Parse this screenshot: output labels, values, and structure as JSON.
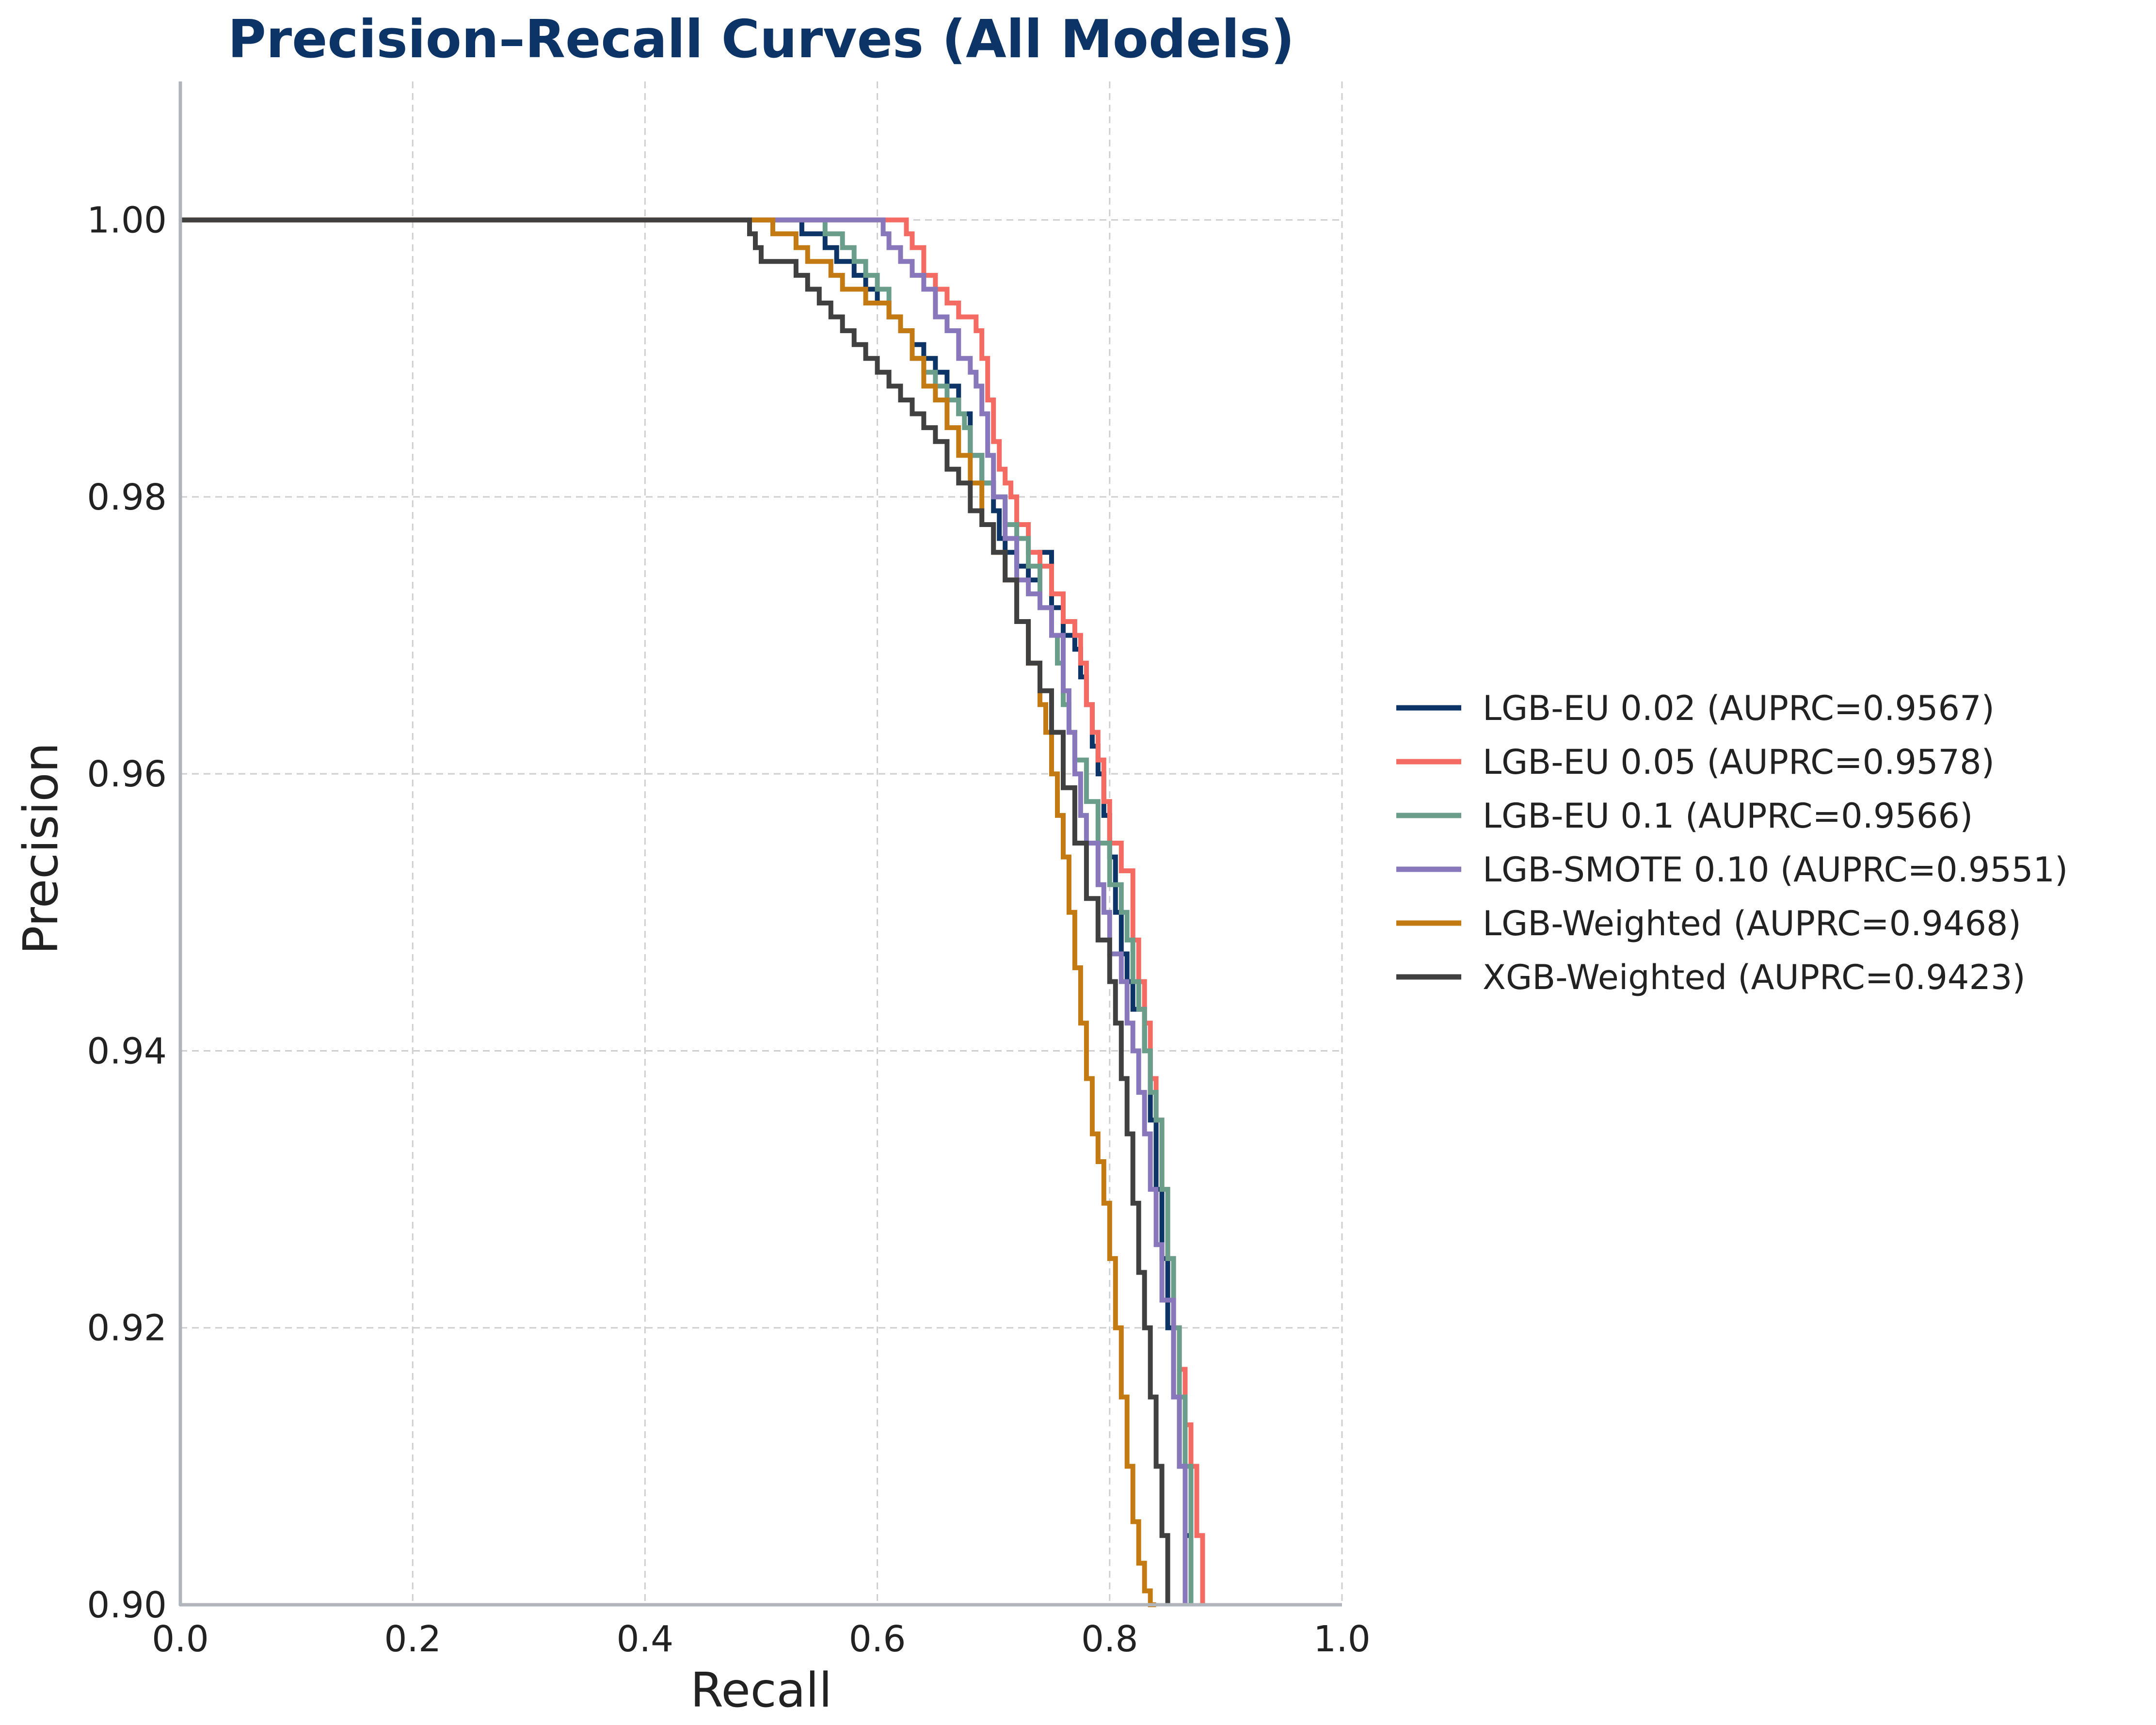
{
  "chart_data": {
    "type": "line",
    "title": "Precision–Recall Curves (All Models)",
    "xlabel": "Recall",
    "ylabel": "Precision",
    "xlim": [
      0.0,
      1.0
    ],
    "ylim": [
      0.9,
      1.01
    ],
    "xticks": [
      "0.0",
      "0.2",
      "0.4",
      "0.6",
      "0.8",
      "1.0"
    ],
    "xtick_values": [
      0.0,
      0.2,
      0.4,
      0.6,
      0.8,
      1.0
    ],
    "yticks": [
      "0.90",
      "0.92",
      "0.94",
      "0.96",
      "0.98",
      "1.00"
    ],
    "ytick_values": [
      0.9,
      0.92,
      0.94,
      0.96,
      0.98,
      1.0
    ],
    "grid": true,
    "legend_position": "right",
    "colors": {
      "title": "#0d3466",
      "axis": "#b0b4bb",
      "grid": "#cfcfcf",
      "text": "#222222"
    },
    "series": [
      {
        "name": "LGB-EU 0.02 (AUPRC=0.9567)",
        "color": "#0d3466",
        "x": [
          0.0,
          0.53,
          0.535,
          0.555,
          0.565,
          0.58,
          0.59,
          0.6,
          0.61,
          0.62,
          0.63,
          0.64,
          0.65,
          0.66,
          0.67,
          0.68,
          0.69,
          0.7,
          0.705,
          0.71,
          0.72,
          0.73,
          0.74,
          0.75,
          0.76,
          0.77,
          0.775,
          0.78,
          0.785,
          0.79,
          0.795,
          0.8,
          0.805,
          0.81,
          0.815,
          0.82,
          0.83,
          0.835,
          0.84,
          0.845,
          0.85,
          0.855,
          0.86,
          0.865,
          0.87
        ],
        "y": [
          1.0,
          1.0,
          0.999,
          0.998,
          0.997,
          0.996,
          0.995,
          0.994,
          0.993,
          0.992,
          0.991,
          0.99,
          0.989,
          0.988,
          0.986,
          0.983,
          0.981,
          0.979,
          0.977,
          0.976,
          0.975,
          0.974,
          0.976,
          0.972,
          0.97,
          0.969,
          0.967,
          0.965,
          0.962,
          0.96,
          0.957,
          0.954,
          0.95,
          0.947,
          0.945,
          0.943,
          0.94,
          0.935,
          0.93,
          0.925,
          0.92,
          0.915,
          0.91,
          0.905,
          0.9
        ]
      },
      {
        "name": "LGB-EU 0.05 (AUPRC=0.9578)",
        "color": "#f36b62",
        "x": [
          0.0,
          0.62,
          0.625,
          0.63,
          0.64,
          0.65,
          0.66,
          0.67,
          0.68,
          0.685,
          0.69,
          0.695,
          0.7,
          0.705,
          0.71,
          0.715,
          0.72,
          0.73,
          0.74,
          0.75,
          0.76,
          0.77,
          0.775,
          0.78,
          0.785,
          0.79,
          0.795,
          0.8,
          0.81,
          0.82,
          0.825,
          0.83,
          0.835,
          0.84,
          0.845,
          0.85,
          0.855,
          0.86,
          0.865,
          0.87,
          0.875,
          0.88
        ],
        "y": [
          1.0,
          1.0,
          0.999,
          0.998,
          0.996,
          0.995,
          0.994,
          0.993,
          0.993,
          0.992,
          0.99,
          0.987,
          0.984,
          0.982,
          0.981,
          0.98,
          0.978,
          0.976,
          0.975,
          0.973,
          0.971,
          0.97,
          0.968,
          0.965,
          0.963,
          0.961,
          0.958,
          0.955,
          0.953,
          0.948,
          0.945,
          0.942,
          0.938,
          0.935,
          0.93,
          0.925,
          0.92,
          0.917,
          0.913,
          0.91,
          0.905,
          0.9
        ]
      },
      {
        "name": "LGB-EU 0.1 (AUPRC=0.9566)",
        "color": "#6a9e8b",
        "x": [
          0.0,
          0.55,
          0.555,
          0.57,
          0.58,
          0.59,
          0.6,
          0.61,
          0.62,
          0.63,
          0.64,
          0.65,
          0.66,
          0.67,
          0.675,
          0.68,
          0.69,
          0.7,
          0.71,
          0.72,
          0.73,
          0.74,
          0.75,
          0.755,
          0.76,
          0.765,
          0.77,
          0.78,
          0.79,
          0.8,
          0.81,
          0.815,
          0.82,
          0.825,
          0.83,
          0.835,
          0.84,
          0.845,
          0.85,
          0.855,
          0.86,
          0.865,
          0.87
        ],
        "y": [
          1.0,
          1.0,
          0.999,
          0.998,
          0.997,
          0.996,
          0.995,
          0.993,
          0.992,
          0.99,
          0.989,
          0.988,
          0.987,
          0.986,
          0.985,
          0.983,
          0.981,
          0.98,
          0.978,
          0.977,
          0.975,
          0.972,
          0.97,
          0.968,
          0.965,
          0.963,
          0.961,
          0.958,
          0.955,
          0.952,
          0.95,
          0.948,
          0.945,
          0.943,
          0.94,
          0.937,
          0.935,
          0.93,
          0.925,
          0.92,
          0.915,
          0.91,
          0.9
        ]
      },
      {
        "name": "LGB-SMOTE 0.10 (AUPRC=0.9551)",
        "color": "#8877ba",
        "x": [
          0.0,
          0.6,
          0.605,
          0.61,
          0.62,
          0.63,
          0.64,
          0.65,
          0.66,
          0.67,
          0.68,
          0.685,
          0.69,
          0.695,
          0.7,
          0.71,
          0.72,
          0.73,
          0.74,
          0.75,
          0.76,
          0.765,
          0.77,
          0.775,
          0.78,
          0.79,
          0.795,
          0.8,
          0.81,
          0.815,
          0.82,
          0.825,
          0.83,
          0.835,
          0.84,
          0.845,
          0.85,
          0.855,
          0.86,
          0.865
        ],
        "y": [
          1.0,
          1.0,
          0.999,
          0.998,
          0.997,
          0.996,
          0.995,
          0.993,
          0.992,
          0.99,
          0.989,
          0.988,
          0.986,
          0.983,
          0.98,
          0.977,
          0.974,
          0.973,
          0.972,
          0.97,
          0.966,
          0.963,
          0.96,
          0.957,
          0.955,
          0.952,
          0.95,
          0.947,
          0.945,
          0.942,
          0.94,
          0.937,
          0.934,
          0.93,
          0.926,
          0.922,
          0.922,
          0.915,
          0.91,
          0.9
        ]
      },
      {
        "name": "LGB-Weighted (AUPRC=0.9468)",
        "color": "#c47a12",
        "x": [
          0.0,
          0.49,
          0.5,
          0.51,
          0.52,
          0.53,
          0.54,
          0.55,
          0.56,
          0.57,
          0.58,
          0.59,
          0.6,
          0.61,
          0.62,
          0.63,
          0.64,
          0.65,
          0.66,
          0.67,
          0.68,
          0.69,
          0.7,
          0.71,
          0.72,
          0.73,
          0.74,
          0.745,
          0.75,
          0.755,
          0.76,
          0.765,
          0.77,
          0.775,
          0.78,
          0.785,
          0.79,
          0.795,
          0.8,
          0.805,
          0.81,
          0.815,
          0.82,
          0.825,
          0.83,
          0.835,
          0.84
        ],
        "y": [
          1.0,
          1.0,
          1.0,
          0.999,
          0.999,
          0.998,
          0.997,
          0.997,
          0.996,
          0.995,
          0.995,
          0.994,
          0.994,
          0.993,
          0.992,
          0.99,
          0.988,
          0.987,
          0.985,
          0.983,
          0.981,
          0.978,
          0.976,
          0.974,
          0.971,
          0.968,
          0.965,
          0.963,
          0.96,
          0.957,
          0.954,
          0.95,
          0.946,
          0.942,
          0.938,
          0.934,
          0.932,
          0.929,
          0.925,
          0.92,
          0.915,
          0.91,
          0.906,
          0.903,
          0.901,
          0.9,
          0.9
        ]
      },
      {
        "name": "XGB-Weighted (AUPRC=0.9423)",
        "color": "#404040",
        "x": [
          0.0,
          0.485,
          0.49,
          0.495,
          0.5,
          0.52,
          0.53,
          0.54,
          0.55,
          0.56,
          0.57,
          0.58,
          0.59,
          0.6,
          0.61,
          0.62,
          0.63,
          0.64,
          0.65,
          0.66,
          0.67,
          0.68,
          0.69,
          0.7,
          0.71,
          0.72,
          0.73,
          0.74,
          0.75,
          0.76,
          0.77,
          0.78,
          0.79,
          0.8,
          0.805,
          0.81,
          0.815,
          0.82,
          0.825,
          0.83,
          0.835,
          0.84,
          0.845,
          0.85
        ],
        "y": [
          1.0,
          1.0,
          0.999,
          0.998,
          0.997,
          0.997,
          0.996,
          0.995,
          0.994,
          0.993,
          0.992,
          0.991,
          0.99,
          0.989,
          0.988,
          0.987,
          0.986,
          0.985,
          0.984,
          0.982,
          0.981,
          0.979,
          0.978,
          0.976,
          0.974,
          0.971,
          0.968,
          0.966,
          0.963,
          0.959,
          0.955,
          0.951,
          0.948,
          0.945,
          0.942,
          0.938,
          0.934,
          0.929,
          0.924,
          0.92,
          0.915,
          0.91,
          0.905,
          0.9
        ]
      }
    ]
  }
}
